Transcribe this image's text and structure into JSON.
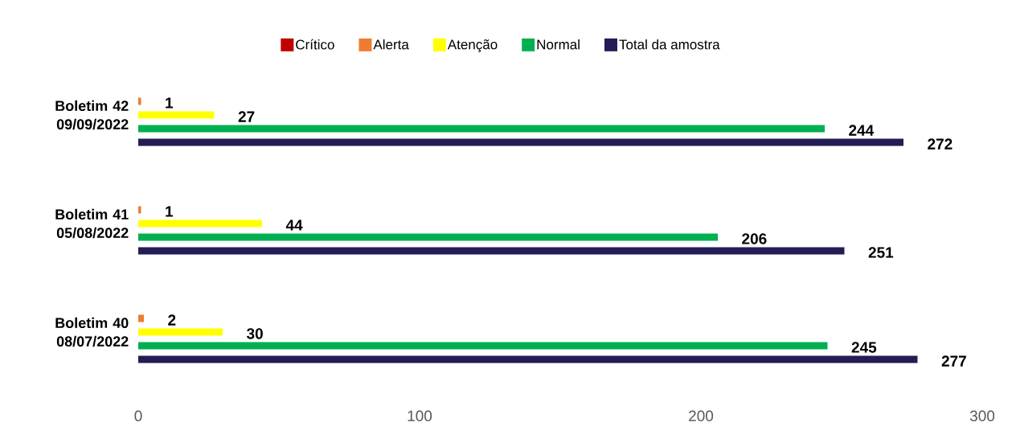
{
  "chart_data": {
    "type": "bar",
    "orientation": "horizontal",
    "categories": [
      "Boletim 42 09/09/2022",
      "Boletim 41 05/08/2022",
      "Boletim 40 08/07/2022"
    ],
    "series": [
      {
        "name": "Crítico",
        "color": "#c00000",
        "values": [
          0,
          0,
          0
        ],
        "value_labels": [
          null,
          null,
          null
        ]
      },
      {
        "name": "Alerta",
        "color": "#ed7d31",
        "values": [
          1,
          1,
          2
        ],
        "value_labels": [
          "1",
          "1",
          "2"
        ]
      },
      {
        "name": "Atenção",
        "color": "#ffff00",
        "values": [
          27,
          44,
          30
        ],
        "value_labels": [
          "27",
          "44",
          "30"
        ]
      },
      {
        "name": "Normal",
        "color": "#00b050",
        "values": [
          244,
          206,
          245
        ],
        "value_labels": [
          "244",
          "206",
          "245"
        ]
      },
      {
        "name": "Total da amostra",
        "color": "#231c56",
        "values": [
          272,
          251,
          277
        ],
        "value_labels": [
          "272",
          "251",
          "277"
        ]
      }
    ],
    "xlim": [
      0,
      300
    ],
    "xticks": [
      0,
      100,
      200,
      300
    ],
    "grid": false,
    "legend": "top"
  }
}
